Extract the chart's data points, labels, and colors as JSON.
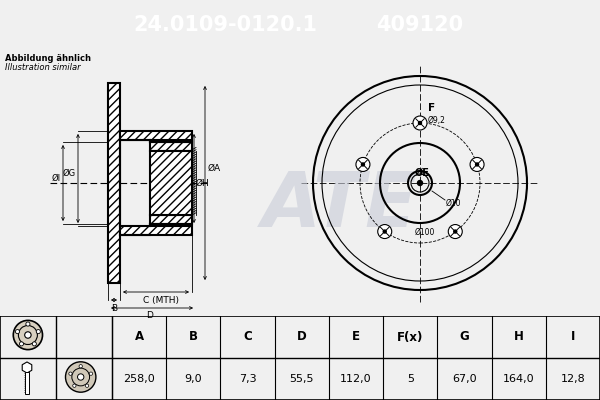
{
  "title_part1": "24.0109-0120.1",
  "title_part2": "409120",
  "subtitle1": "Abbildung ähnlich",
  "subtitle2": "Illustration similar",
  "bg_color": "#f0f0f0",
  "header_bg": "#0000cc",
  "header_text_color": "#ffffff",
  "table_headers": [
    "A",
    "B",
    "C",
    "D",
    "E",
    "F(x)",
    "G",
    "H",
    "I"
  ],
  "table_values": [
    "258,0",
    "9,0",
    "7,3",
    "55,5",
    "112,0",
    "5",
    "67,0",
    "164,0",
    "12,8"
  ],
  "line_color": "#000000",
  "drawing_bg": "#e8e8d8",
  "watermark_color": "#c8ccd8"
}
